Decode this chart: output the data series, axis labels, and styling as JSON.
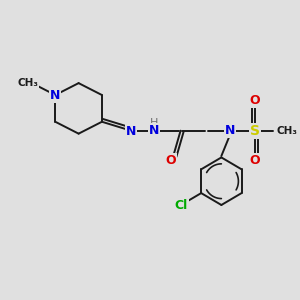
{
  "background_color": "#e0e0e0",
  "figsize": [
    3.0,
    3.0
  ],
  "dpi": 100,
  "bond_color": "#1a1a1a",
  "bond_width": 1.4,
  "colors": {
    "N": "#0000dd",
    "O": "#dd0000",
    "S": "#cccc00",
    "Cl": "#00aa00",
    "C": "#1a1a1a",
    "H": "#707070"
  },
  "scale": 1.0
}
